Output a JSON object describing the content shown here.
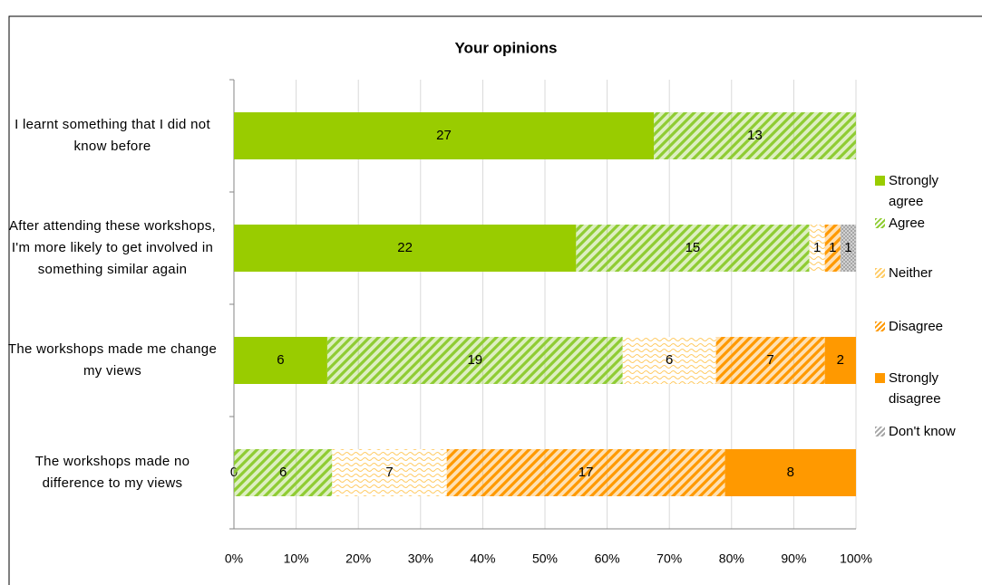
{
  "chart_data": {
    "type": "stacked-bar-percent",
    "orientation": "horizontal",
    "title": "Your opinions",
    "categories": [
      "I learnt something that I did not know before",
      "After attending these workshops, I'm more likely to get involved in something similar again",
      "The workshops made me change my views",
      "The workshops made no difference to my views"
    ],
    "series": [
      {
        "name": "Strongly agree",
        "color": "#99cc00",
        "pattern": "solid",
        "values": [
          27,
          22,
          6,
          0
        ]
      },
      {
        "name": "Agree",
        "color": "#8fcc33",
        "pattern": "stripes",
        "values": [
          13,
          15,
          19,
          6
        ]
      },
      {
        "name": "Neither",
        "color": "#ffcc66",
        "pattern": "wave",
        "values": [
          null,
          1,
          6,
          7
        ]
      },
      {
        "name": "Disagree",
        "color": "#ff9900",
        "pattern": "stripes",
        "values": [
          null,
          1,
          7,
          17
        ]
      },
      {
        "name": "Strongly disagree",
        "color": "#ff9900",
        "pattern": "solid",
        "values": [
          null,
          null,
          2,
          8
        ]
      },
      {
        "name": "Don't know",
        "color": "#a6a6a6",
        "pattern": "dots",
        "values": [
          null,
          1,
          null,
          null
        ]
      }
    ],
    "xlim": [
      0,
      100
    ],
    "xticks": [
      {
        "value": 0,
        "label": "0%"
      },
      {
        "value": 10,
        "label": "10%"
      },
      {
        "value": 20,
        "label": "20%"
      },
      {
        "value": 30,
        "label": "30%"
      },
      {
        "value": 40,
        "label": "40%"
      },
      {
        "value": 50,
        "label": "50%"
      },
      {
        "value": 60,
        "label": "60%"
      },
      {
        "value": 70,
        "label": "70%"
      },
      {
        "value": 80,
        "label": "80%"
      },
      {
        "value": 90,
        "label": "90%"
      },
      {
        "value": 100,
        "label": "100%"
      }
    ],
    "grid": true,
    "legend": "right"
  }
}
